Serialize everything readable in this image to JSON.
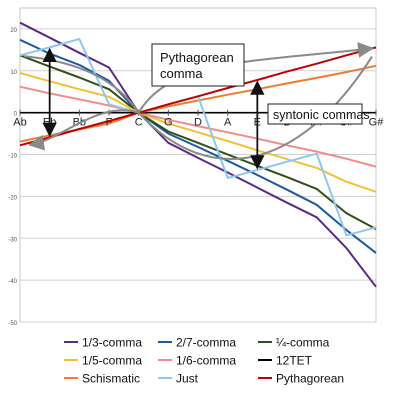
{
  "chart_data": {
    "type": "line",
    "title": "",
    "xlabel": "",
    "ylabel": "",
    "categories": [
      "Ab",
      "Eb",
      "Bb",
      "F",
      "C",
      "G",
      "D",
      "A",
      "E",
      "B",
      "F#",
      "C#",
      "G#"
    ],
    "ylim": [
      -50,
      25
    ],
    "yticks": [
      20,
      10,
      0,
      -10,
      -20,
      -30,
      -40,
      -50
    ],
    "grid": true,
    "legend_position": "bottom",
    "series": [
      {
        "name": "1/3-comma",
        "color": "#5b2a86",
        "values": [
          21.5,
          17.9,
          14.3,
          10.8,
          0,
          -7.2,
          -10.8,
          -14.3,
          -17.9,
          -21.5,
          -25.0,
          -32.3,
          -41.6
        ]
      },
      {
        "name": "2/7-comma",
        "color": "#1f5a9e",
        "values": [
          17.4,
          14.1,
          11.4,
          7.6,
          0,
          -5.0,
          -8.2,
          -11.5,
          -14.9,
          -18.4,
          -22.0,
          -28.0,
          -33.5
        ]
      },
      {
        "name": "¼-comma",
        "color": "#334d16",
        "values": [
          13.7,
          11.0,
          8.4,
          5.6,
          0,
          -4.5,
          -7.2,
          -10.0,
          -12.7,
          -15.4,
          -18.2,
          -24.0,
          -27.8
        ]
      },
      {
        "name": "1/5-comma",
        "color": "#f1c232",
        "values": [
          9.5,
          7.5,
          5.6,
          3.8,
          0,
          -2.6,
          -4.7,
          -6.8,
          -9.0,
          -11.1,
          -13.2,
          -16.5,
          -18.9
        ]
      },
      {
        "name": "1/6-comma",
        "color": "#f48b8b",
        "values": [
          6.2,
          4.6,
          3.2,
          1.7,
          0,
          -1.7,
          -3.2,
          -4.7,
          -6.2,
          -7.8,
          -9.3,
          -11.0,
          -12.9
        ]
      },
      {
        "name": "12TET",
        "color": "#000000",
        "values": [
          0,
          0,
          0,
          0,
          0,
          0,
          0,
          0,
          0,
          0,
          0,
          0,
          0
        ]
      },
      {
        "name": "Schismatic",
        "color": "#ed7d31",
        "values": [
          -6.9,
          -5.4,
          -4.0,
          -2.6,
          0,
          1.5,
          2.9,
          4.3,
          5.6,
          7.0,
          8.3,
          9.7,
          11.2
        ]
      },
      {
        "name": "Just",
        "color": "#8fc7f0",
        "values": [
          13.7,
          15.6,
          17.6,
          2.0,
          0,
          2.0,
          3.9,
          -15.6,
          -13.7,
          -11.7,
          -9.8,
          -29.3,
          -27.4
        ]
      },
      {
        "name": "Pythagorean",
        "color": "#c00000",
        "values": [
          -7.8,
          -5.9,
          -3.9,
          -2.0,
          0,
          2.0,
          3.9,
          5.9,
          7.8,
          9.8,
          11.7,
          13.7,
          15.6
        ]
      }
    ],
    "annotations": [
      {
        "text": "Pythagorean comma"
      },
      {
        "text": "syntonic commas"
      }
    ]
  }
}
